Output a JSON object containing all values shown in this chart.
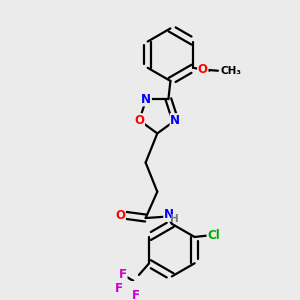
{
  "bg_color": "#ebebeb",
  "bond_color": "#000000",
  "bond_lw": 1.6,
  "atom_colors": {
    "O": "#ff0000",
    "N": "#0000ff",
    "Cl": "#00aa00",
    "F": "#cc00cc",
    "H": "#777777"
  },
  "font_size": 8.5,
  "fig_size": [
    3.0,
    3.0
  ],
  "dpi": 100
}
